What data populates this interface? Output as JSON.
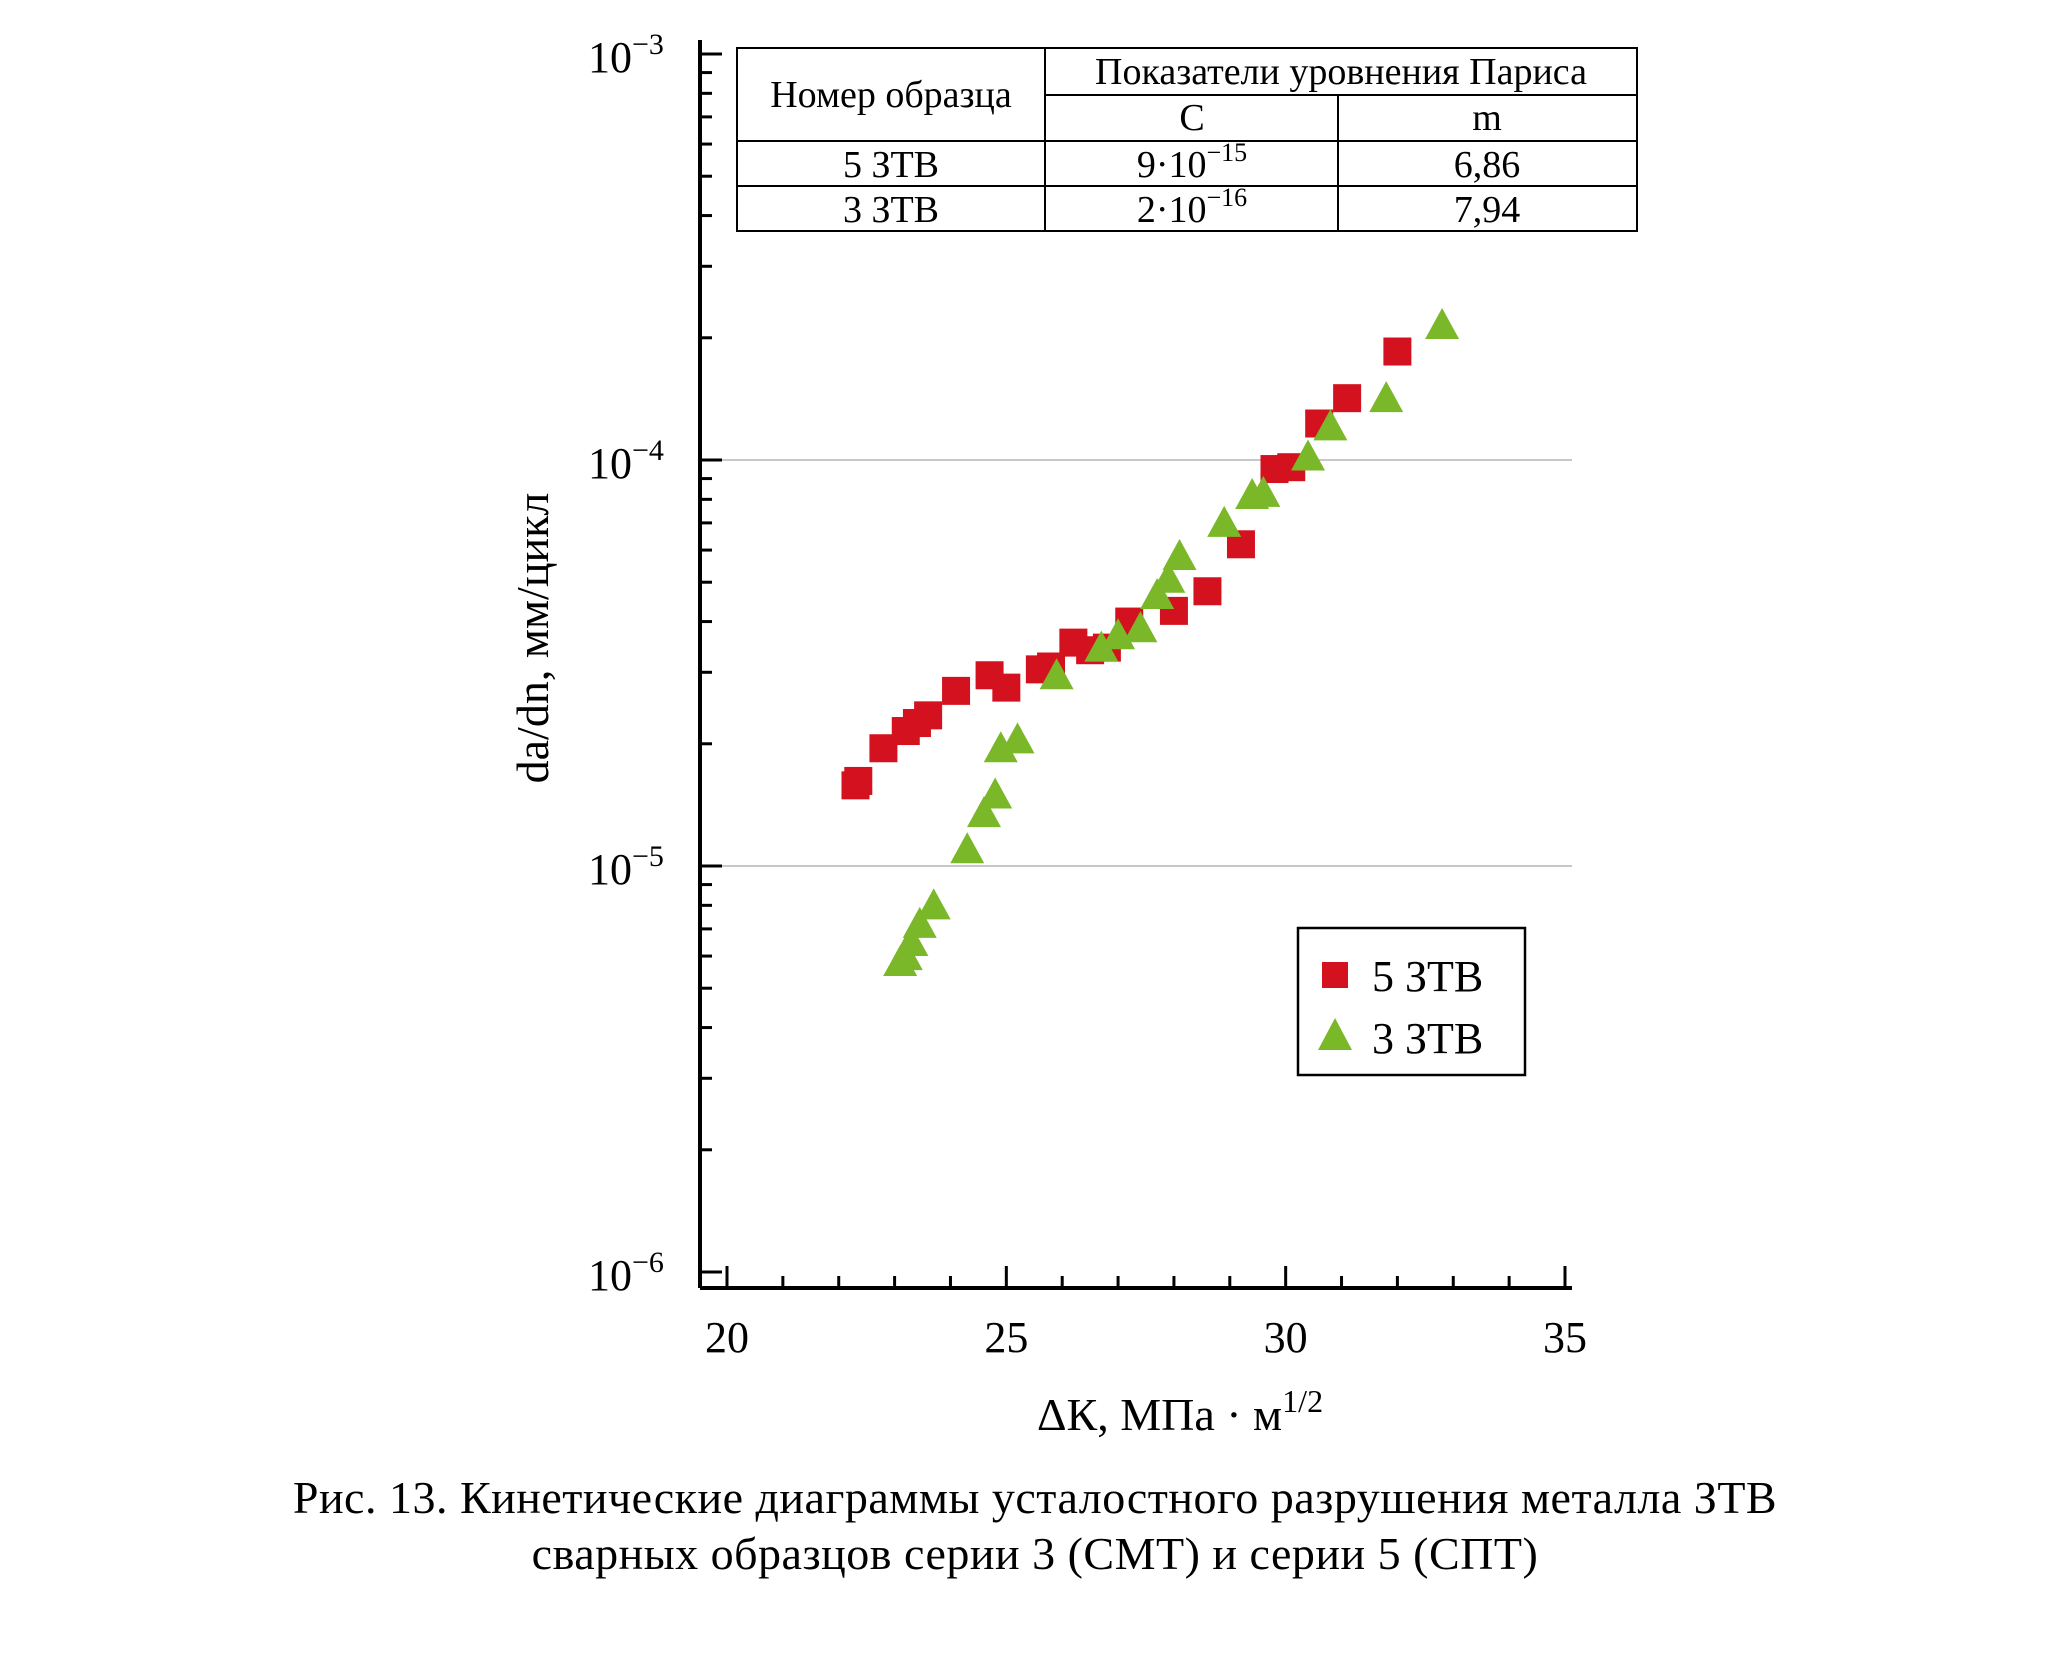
{
  "chart_data": {
    "type": "scatter",
    "xlabel": "ΔК, МПа · м",
    "xlabel_sup": "1/2",
    "ylabel": "da/dn, мм/цикл",
    "xlim": [
      20,
      35
    ],
    "ylim": [
      1e-06,
      0.001
    ],
    "yscale": "log",
    "x_ticks": [
      "20",
      "25",
      "30",
      "35"
    ],
    "y_ticks": [
      {
        "base": "10",
        "exp": "−3"
      },
      {
        "base": "10",
        "exp": "−4"
      },
      {
        "base": "10",
        "exp": "−5"
      },
      {
        "base": "10",
        "exp": "−6"
      }
    ],
    "grid": "horizontal at decades",
    "legend_position": "lower-right",
    "series": [
      {
        "name": "5 ЗТВ",
        "marker": "square",
        "color": "#d4121f",
        "points": [
          [
            22.3,
            1.58e-05
          ],
          [
            22.35,
            1.62e-05
          ],
          [
            22.8,
            1.95e-05
          ],
          [
            23.2,
            2.15e-05
          ],
          [
            23.4,
            2.25e-05
          ],
          [
            23.6,
            2.35e-05
          ],
          [
            24.1,
            2.7e-05
          ],
          [
            24.7,
            2.95e-05
          ],
          [
            25.0,
            2.75e-05
          ],
          [
            25.6,
            3.05e-05
          ],
          [
            25.8,
            3.1e-05
          ],
          [
            26.2,
            3.55e-05
          ],
          [
            26.5,
            3.4e-05
          ],
          [
            26.8,
            3.45e-05
          ],
          [
            27.2,
            4e-05
          ],
          [
            28.0,
            4.25e-05
          ],
          [
            28.6,
            4.75e-05
          ],
          [
            29.2,
            6.2e-05
          ],
          [
            29.8,
            9.5e-05
          ],
          [
            30.1,
            9.6e-05
          ],
          [
            30.6,
            0.000123
          ],
          [
            31.1,
            0.000142
          ],
          [
            32.0,
            0.000185
          ]
        ]
      },
      {
        "name": "3 ЗТВ",
        "marker": "triangle",
        "color": "#7ab829",
        "points": [
          [
            23.1,
            5.8e-06
          ],
          [
            23.2,
            6e-06
          ],
          [
            23.3,
            6.5e-06
          ],
          [
            23.45,
            7.2e-06
          ],
          [
            23.7,
            8e-06
          ],
          [
            24.3,
            1.1e-05
          ],
          [
            24.6,
            1.35e-05
          ],
          [
            24.8,
            1.5e-05
          ],
          [
            24.9,
            1.95e-05
          ],
          [
            25.2,
            2.05e-05
          ],
          [
            25.9,
            2.95e-05
          ],
          [
            26.7,
            3.45e-05
          ],
          [
            27.0,
            3.7e-05
          ],
          [
            27.4,
            3.85e-05
          ],
          [
            27.7,
            4.65e-05
          ],
          [
            27.9,
            5.1e-05
          ],
          [
            28.1,
            5.8e-05
          ],
          [
            28.9,
            7e-05
          ],
          [
            29.4,
            8.2e-05
          ],
          [
            29.6,
            8.3e-05
          ],
          [
            30.4,
            0.000102
          ],
          [
            30.8,
            0.000121
          ],
          [
            31.8,
            0.000142
          ],
          [
            32.8,
            0.000215
          ]
        ]
      }
    ],
    "table": {
      "header_sample": "Номер образца",
      "header_group": "Показатели уровнения Париса",
      "header_c": "С",
      "header_m": "m",
      "rows": [
        {
          "sample": "5 ЗТВ",
          "c_base": "9·10",
          "c_exp": "−15",
          "m": "6,86"
        },
        {
          "sample": "3 ЗТВ",
          "c_base": "2·10",
          "c_exp": "−16",
          "m": "7,94"
        }
      ]
    }
  },
  "caption": {
    "line1": "Рис. 13. Кинетические диаграммы усталостного разрушения металла ЗТВ",
    "line2": "сварных образцов серии 3 (СМТ) и серии 5 (СПТ)"
  }
}
